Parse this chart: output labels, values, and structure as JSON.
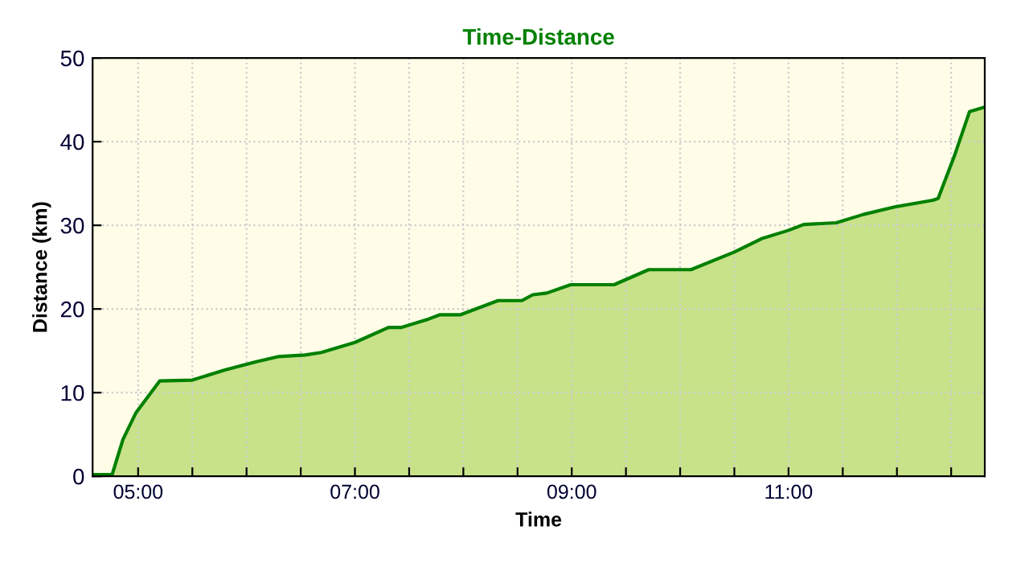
{
  "chart_data": {
    "type": "area",
    "title": "Time-Distance",
    "xlabel": "Time",
    "ylabel": "Distance (km)",
    "xlim": [
      4.58,
      12.81
    ],
    "ylim": [
      0,
      50
    ],
    "xticks": [
      {
        "value": 5,
        "label": "05:00"
      },
      {
        "value": 5.5,
        "label": null
      },
      {
        "value": 6,
        "label": null
      },
      {
        "value": 6.5,
        "label": null
      },
      {
        "value": 7,
        "label": "07:00"
      },
      {
        "value": 7.5,
        "label": null
      },
      {
        "value": 8,
        "label": null
      },
      {
        "value": 8.5,
        "label": null
      },
      {
        "value": 9,
        "label": "09:00"
      },
      {
        "value": 9.5,
        "label": null
      },
      {
        "value": 10,
        "label": null
      },
      {
        "value": 10.5,
        "label": null
      },
      {
        "value": 11,
        "label": "11:00"
      },
      {
        "value": 11.5,
        "label": null
      },
      {
        "value": 12,
        "label": null
      },
      {
        "value": 12.5,
        "label": null
      }
    ],
    "yticks": [
      0,
      10,
      20,
      30,
      40,
      50
    ],
    "grid": true,
    "legend": false,
    "x": [
      4.58,
      4.76,
      4.86,
      4.98,
      5.2,
      5.5,
      5.8,
      6.09,
      6.29,
      6.54,
      6.69,
      7.0,
      7.31,
      7.43,
      7.68,
      7.78,
      7.97,
      8.32,
      8.54,
      8.64,
      8.77,
      8.99,
      9.39,
      9.71,
      10.1,
      10.5,
      10.75,
      11.0,
      11.14,
      11.44,
      11.69,
      11.98,
      12.33,
      12.38,
      12.53,
      12.67,
      12.8
    ],
    "series": [
      {
        "color": "#008000",
        "values": [
          0.2,
          0.2,
          4.4,
          7.6,
          11.4,
          11.5,
          12.7,
          13.7,
          14.3,
          14.5,
          14.8,
          16.0,
          17.8,
          17.8,
          18.8,
          19.3,
          19.3,
          21.0,
          21.0,
          21.7,
          21.9,
          22.9,
          22.9,
          24.7,
          24.7,
          26.8,
          28.4,
          29.4,
          30.1,
          30.3,
          31.3,
          32.2,
          33.0,
          33.2,
          38.3,
          43.6,
          44.1
        ]
      }
    ]
  }
}
